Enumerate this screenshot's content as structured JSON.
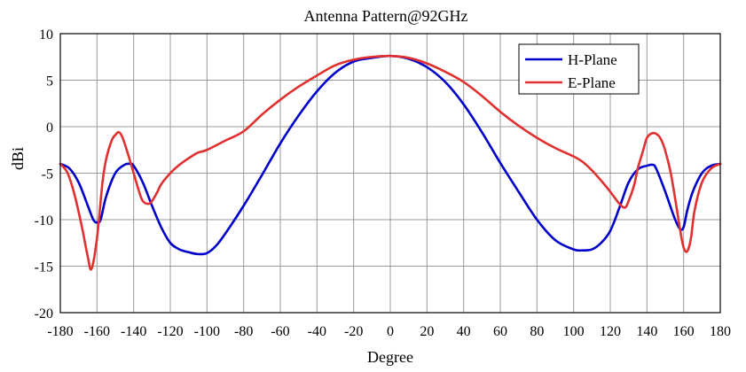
{
  "chart_data": {
    "type": "line",
    "title": "Antenna Pattern@92GHz",
    "xlabel": "Degree",
    "ylabel": "dBi",
    "xlim": [
      -180,
      180
    ],
    "ylim": [
      -20,
      10
    ],
    "xticks": [
      -180,
      -160,
      -140,
      -120,
      -100,
      -80,
      -60,
      -40,
      -20,
      0,
      20,
      40,
      60,
      80,
      100,
      120,
      140,
      160,
      180
    ],
    "yticks": [
      -20,
      -15,
      -10,
      -5,
      0,
      5,
      10
    ],
    "grid": true,
    "legend_position": "top-right",
    "series": [
      {
        "name": "H-Plane",
        "color": "#0000cc",
        "x": [
          -180,
          -175,
          -170,
          -165,
          -162,
          -160,
          -158,
          -155,
          -150,
          -145,
          -142,
          -140,
          -135,
          -130,
          -125,
          -120,
          -115,
          -110,
          -105,
          -100,
          -95,
          -90,
          -80,
          -70,
          -60,
          -50,
          -40,
          -30,
          -20,
          -10,
          0,
          10,
          20,
          30,
          40,
          50,
          60,
          70,
          80,
          90,
          100,
          105,
          110,
          115,
          120,
          125,
          130,
          135,
          140,
          143,
          145,
          150,
          155,
          158,
          160,
          162,
          165,
          170,
          175,
          180
        ],
        "y": [
          -4.0,
          -4.5,
          -6.0,
          -8.5,
          -10.0,
          -10.3,
          -10.0,
          -7.5,
          -5.0,
          -4.1,
          -4.0,
          -4.2,
          -6.0,
          -8.5,
          -10.8,
          -12.5,
          -13.2,
          -13.5,
          -13.7,
          -13.6,
          -12.8,
          -11.5,
          -8.5,
          -5.2,
          -1.8,
          1.2,
          3.8,
          5.8,
          7.0,
          7.4,
          7.6,
          7.3,
          6.4,
          4.8,
          2.4,
          -0.6,
          -3.9,
          -7.0,
          -10.0,
          -12.2,
          -13.2,
          -13.3,
          -13.2,
          -12.5,
          -11.2,
          -8.7,
          -6.0,
          -4.6,
          -4.2,
          -4.1,
          -4.5,
          -7.0,
          -9.8,
          -11.0,
          -10.8,
          -9.0,
          -7.0,
          -5.0,
          -4.2,
          -4.0
        ]
      },
      {
        "name": "E-Plane",
        "color": "#e03030",
        "x": [
          -180,
          -176,
          -172,
          -168,
          -165,
          -163,
          -160,
          -157,
          -155,
          -152,
          -150,
          -148,
          -146,
          -143,
          -140,
          -137,
          -135,
          -132,
          -130,
          -127,
          -125,
          -120,
          -115,
          -110,
          -105,
          -100,
          -90,
          -80,
          -70,
          -60,
          -50,
          -40,
          -30,
          -20,
          -10,
          0,
          10,
          20,
          30,
          40,
          50,
          60,
          70,
          80,
          90,
          100,
          105,
          110,
          115,
          120,
          125,
          128,
          130,
          133,
          135,
          138,
          140,
          143,
          146,
          148,
          150,
          153,
          156,
          158,
          160,
          162,
          164,
          166,
          170,
          175,
          180
        ],
        "y": [
          -4.0,
          -5.0,
          -7.5,
          -11.0,
          -14.0,
          -15.3,
          -12.0,
          -6.0,
          -3.5,
          -1.5,
          -0.9,
          -0.6,
          -1.2,
          -3.0,
          -5.0,
          -7.0,
          -8.0,
          -8.3,
          -8.0,
          -7.0,
          -6.2,
          -5.0,
          -4.1,
          -3.4,
          -2.8,
          -2.5,
          -1.5,
          -0.5,
          1.3,
          2.9,
          4.3,
          5.5,
          6.6,
          7.2,
          7.5,
          7.6,
          7.4,
          6.8,
          5.9,
          4.8,
          3.3,
          1.6,
          0.1,
          -1.2,
          -2.3,
          -3.2,
          -3.8,
          -4.7,
          -5.8,
          -7.0,
          -8.3,
          -8.7,
          -8.0,
          -6.3,
          -4.5,
          -2.5,
          -1.2,
          -0.7,
          -0.9,
          -1.5,
          -2.6,
          -5.0,
          -8.5,
          -11.0,
          -13.0,
          -13.4,
          -12.0,
          -9.0,
          -6.0,
          -4.5,
          -4.0
        ]
      }
    ]
  }
}
